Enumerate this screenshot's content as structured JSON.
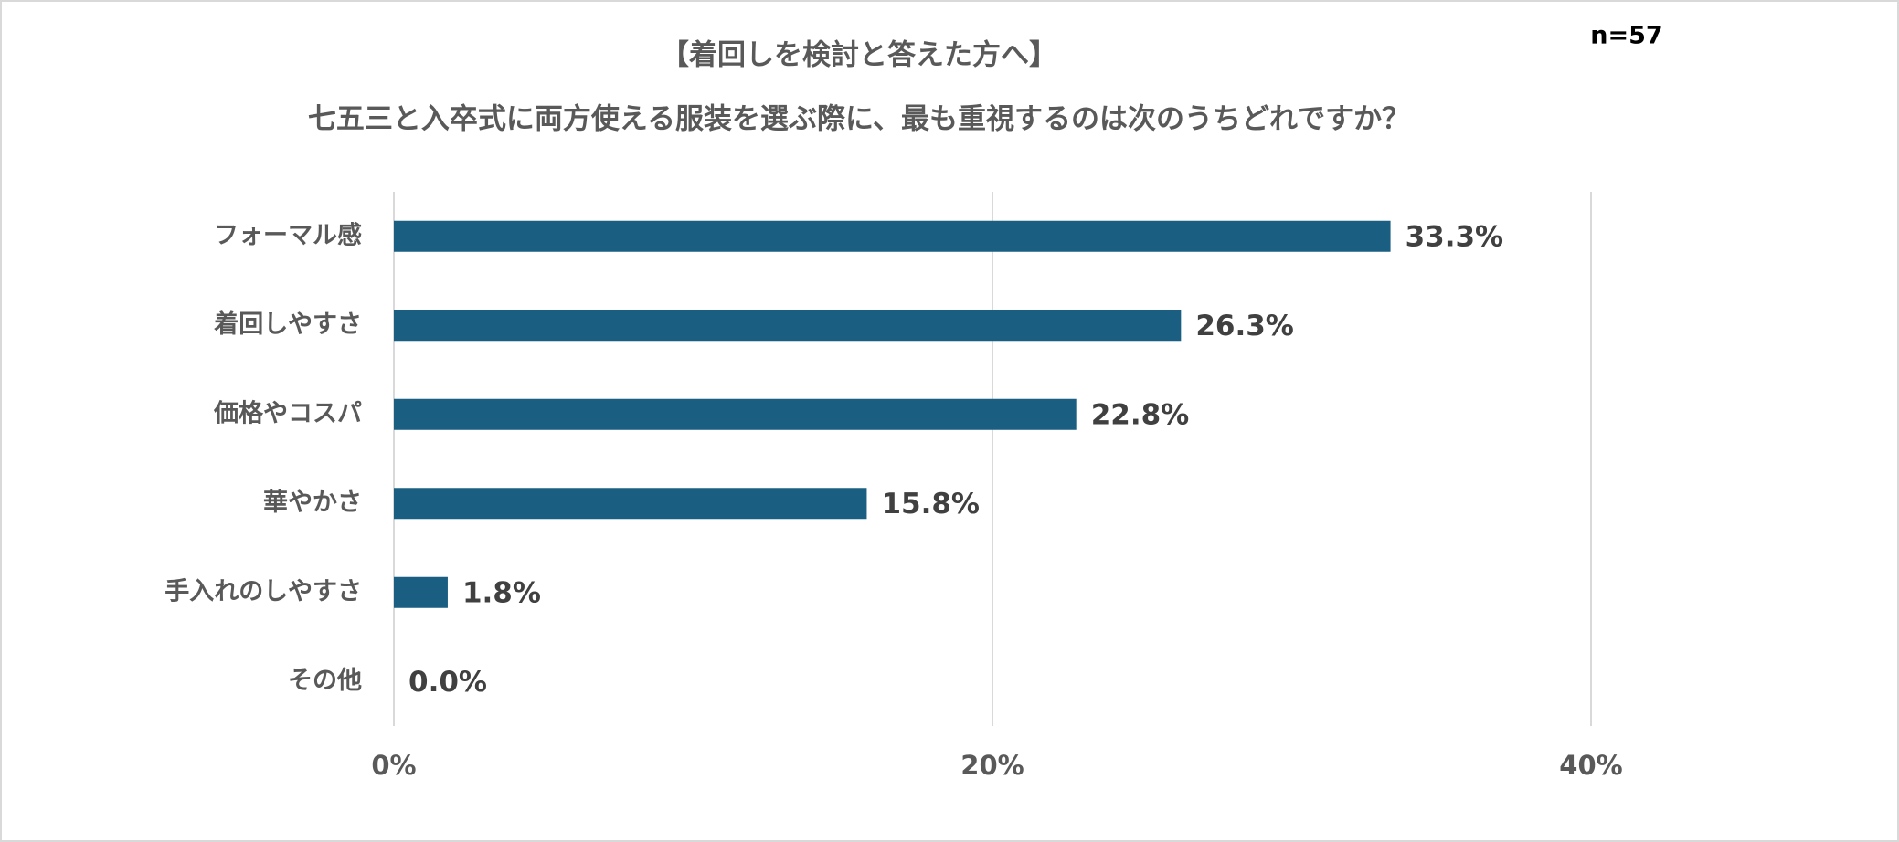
{
  "chart_data": {
    "type": "bar",
    "orientation": "horizontal",
    "title": "【着回しを検討と答えた方へ】",
    "subtitle": "七五三と入卒式に両方使える服装を選ぶ際に、最も重視するのは次のうちどれですか？",
    "annotation": "n=57",
    "categories": [
      "フォーマル感",
      "着回しやすさ",
      "価格やコスパ",
      "華やかさ",
      "手入れのしやすさ",
      "その他"
    ],
    "values": [
      33.3,
      26.3,
      22.8,
      15.8,
      1.8,
      0.0
    ],
    "value_labels": [
      "33.3%",
      "26.3%",
      "22.8%",
      "15.8%",
      "1.8%",
      "0.0%"
    ],
    "color": "#1a5f82",
    "xlim": [
      0,
      40
    ],
    "xticks": [
      {
        "value": 0,
        "label": "0%"
      },
      {
        "value": 20,
        "label": "20%"
      },
      {
        "value": 40,
        "label": "40%"
      }
    ],
    "grid": true
  }
}
